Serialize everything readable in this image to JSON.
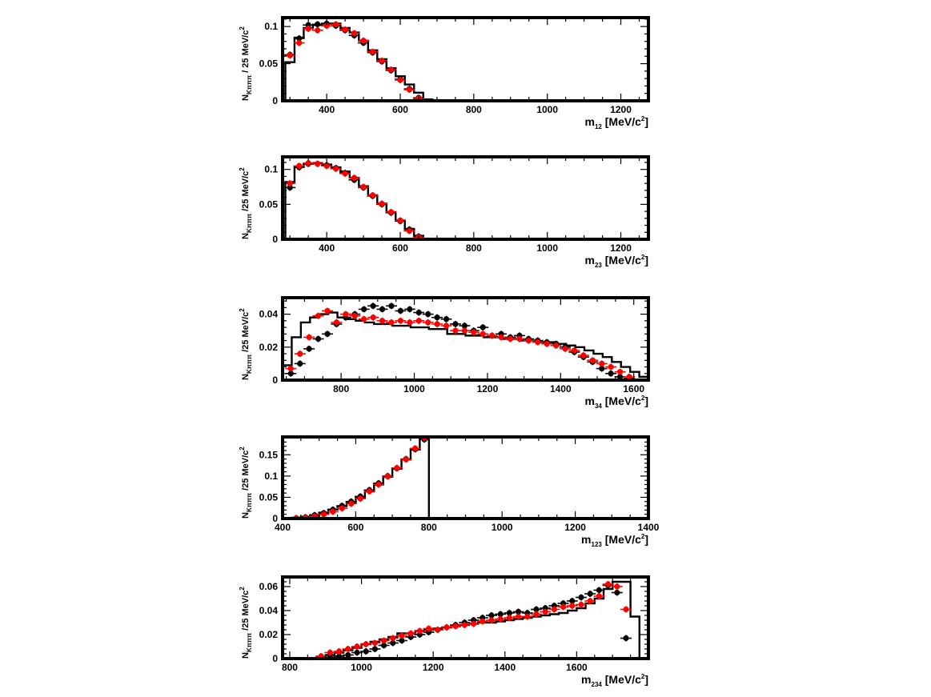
{
  "chart_data": [
    {
      "type": "histogram-with-points",
      "xlabel": "m12 [MeV/c2]",
      "xlabel_main": "m",
      "xlabel_sub": "12",
      "xlabel_unit": "[MeV/c",
      "xlabel_unit_sup": "2",
      "xlabel_unit_close": "]",
      "ylabel": "NKπππ / 25 MeV/c2",
      "ylabel_main": "N",
      "ylabel_sub": "Kπππ",
      "ylabel_rest": "/ 25 MeV/c",
      "ylabel_sup": "2",
      "xlim": [
        280,
        1275
      ],
      "ylim": [
        0,
        0.112
      ],
      "xticks": [
        400,
        600,
        800,
        1000,
        1200
      ],
      "yticks": [
        0,
        0.05,
        0.1
      ],
      "ytick_labels": [
        "0",
        "0.05",
        "0.1"
      ],
      "bin_width": 25,
      "histogram": {
        "x_start": 287.5,
        "values": [
          0.052,
          0.085,
          0.098,
          0.102,
          0.104,
          0.104,
          0.098,
          0.092,
          0.081,
          0.068,
          0.056,
          0.044,
          0.033,
          0.022,
          0.011,
          0.002
        ]
      },
      "series": [
        {
          "color": "#000000",
          "x": [
            300,
            325,
            350,
            375,
            400,
            425,
            450,
            475,
            500,
            525,
            550,
            575,
            600,
            625,
            650
          ],
          "values": [
            0.062,
            0.084,
            0.102,
            0.103,
            0.104,
            0.101,
            0.095,
            0.088,
            0.078,
            0.065,
            0.053,
            0.041,
            0.029,
            0.016,
            0.004
          ]
        },
        {
          "color": "#ff0000",
          "x": [
            300,
            325,
            350,
            375,
            400,
            425,
            450,
            475,
            500,
            525,
            550,
            575,
            600,
            625,
            650
          ],
          "values": [
            0.061,
            0.078,
            0.097,
            0.095,
            0.101,
            0.103,
            0.096,
            0.091,
            0.081,
            0.066,
            0.054,
            0.042,
            0.028,
            0.015,
            0.003
          ]
        }
      ]
    },
    {
      "type": "histogram-with-points",
      "xlabel": "m23 [MeV/c2]",
      "xlabel_main": "m",
      "xlabel_sub": "23",
      "xlabel_unit": "[MeV/c",
      "xlabel_unit_sup": "2",
      "xlabel_unit_close": "]",
      "ylabel": "NKπππ /25 MeV/c2",
      "ylabel_main": "N",
      "ylabel_sub": "Kπππ",
      "ylabel_rest": "/25 MeV/c",
      "ylabel_sup": "2",
      "xlim": [
        280,
        1275
      ],
      "ylim": [
        0,
        0.118
      ],
      "xticks": [
        400,
        600,
        800,
        1000,
        1200
      ],
      "yticks": [
        0,
        0.05,
        0.1
      ],
      "ytick_labels": [
        "0",
        "0.05",
        "0.1"
      ],
      "bin_width": 25,
      "histogram": {
        "x_start": 287.5,
        "values": [
          0.082,
          0.104,
          0.108,
          0.109,
          0.107,
          0.103,
          0.097,
          0.088,
          0.076,
          0.063,
          0.051,
          0.039,
          0.027,
          0.015,
          0.005
        ]
      },
      "series": [
        {
          "color": "#000000",
          "x": [
            300,
            325,
            350,
            375,
            400,
            425,
            450,
            475,
            500,
            525,
            550,
            575,
            600,
            625,
            650
          ],
          "values": [
            0.074,
            0.103,
            0.108,
            0.108,
            0.106,
            0.102,
            0.095,
            0.085,
            0.074,
            0.062,
            0.05,
            0.038,
            0.026,
            0.014,
            0.004
          ]
        },
        {
          "color": "#ff0000",
          "x": [
            300,
            325,
            350,
            375,
            400,
            425,
            450,
            475,
            500,
            525,
            550,
            575,
            600,
            625,
            650
          ],
          "values": [
            0.08,
            0.105,
            0.109,
            0.108,
            0.105,
            0.101,
            0.094,
            0.088,
            0.075,
            0.063,
            0.051,
            0.039,
            0.027,
            0.012,
            0.003
          ]
        }
      ]
    },
    {
      "type": "histogram-with-points",
      "xlabel": "m34 [MeV/c2]",
      "xlabel_main": "m",
      "xlabel_sub": "34",
      "xlabel_unit": "[MeV/c",
      "xlabel_unit_sup": "2",
      "xlabel_unit_close": "]",
      "ylabel": "NKπππ /25 MeV/c2",
      "ylabel_main": "N",
      "ylabel_sub": "Kπππ",
      "ylabel_rest": "/25 MeV/c",
      "ylabel_sup": "2",
      "xlim": [
        640,
        1640
      ],
      "ylim": [
        0,
        0.05
      ],
      "xticks": [
        800,
        1000,
        1200,
        1400,
        1600
      ],
      "yticks": [
        0,
        0.02,
        0.04
      ],
      "ytick_labels": [
        "0",
        "0.02",
        "0.04"
      ],
      "bin_width": 25,
      "histogram": {
        "x_start": 640,
        "values": [
          0.009,
          0.026,
          0.035,
          0.038,
          0.04,
          0.041,
          0.038,
          0.037,
          0.036,
          0.035,
          0.034,
          0.034,
          0.033,
          0.033,
          0.032,
          0.032,
          0.031,
          0.031,
          0.028,
          0.028,
          0.027,
          0.027,
          0.026,
          0.026,
          0.025,
          0.025,
          0.024,
          0.024,
          0.023,
          0.023,
          0.022,
          0.021,
          0.02,
          0.018,
          0.016,
          0.014,
          0.011,
          0.008,
          0.005,
          0.002
        ]
      },
      "series": [
        {
          "color": "#000000",
          "x": [
            662.5,
            687.5,
            712.5,
            737.5,
            762.5,
            787.5,
            812.5,
            837.5,
            862.5,
            887.5,
            912.5,
            937.5,
            962.5,
            987.5,
            1012.5,
            1037.5,
            1062.5,
            1087.5,
            1112.5,
            1137.5,
            1162.5,
            1187.5,
            1212.5,
            1237.5,
            1262.5,
            1287.5,
            1312.5,
            1337.5,
            1362.5,
            1387.5,
            1412.5,
            1437.5,
            1462.5,
            1487.5,
            1512.5,
            1537.5,
            1562.5,
            1587.5
          ],
          "values": [
            0.004,
            0.01,
            0.019,
            0.025,
            0.028,
            0.034,
            0.038,
            0.04,
            0.043,
            0.045,
            0.043,
            0.045,
            0.042,
            0.043,
            0.041,
            0.04,
            0.038,
            0.037,
            0.034,
            0.033,
            0.03,
            0.032,
            0.027,
            0.028,
            0.026,
            0.027,
            0.025,
            0.024,
            0.023,
            0.022,
            0.02,
            0.017,
            0.014,
            0.011,
            0.007,
            0.004,
            0.002,
            0.001
          ]
        },
        {
          "color": "#ff0000",
          "x": [
            662.5,
            687.5,
            712.5,
            737.5,
            762.5,
            787.5,
            812.5,
            837.5,
            862.5,
            887.5,
            912.5,
            937.5,
            962.5,
            987.5,
            1012.5,
            1037.5,
            1062.5,
            1087.5,
            1112.5,
            1137.5,
            1162.5,
            1187.5,
            1212.5,
            1237.5,
            1262.5,
            1287.5,
            1312.5,
            1337.5,
            1362.5,
            1387.5,
            1412.5,
            1437.5,
            1462.5,
            1487.5,
            1512.5,
            1537.5,
            1562.5,
            1587.5
          ],
          "values": [
            0.007,
            0.016,
            0.026,
            0.039,
            0.042,
            0.035,
            0.04,
            0.039,
            0.037,
            0.038,
            0.036,
            0.035,
            0.036,
            0.035,
            0.036,
            0.035,
            0.034,
            0.033,
            0.03,
            0.03,
            0.029,
            0.028,
            0.027,
            0.026,
            0.025,
            0.025,
            0.024,
            0.023,
            0.022,
            0.021,
            0.019,
            0.018,
            0.015,
            0.012,
            0.01,
            0.008,
            0.005,
            0.002
          ]
        }
      ]
    },
    {
      "type": "histogram-with-points",
      "xlabel": "m123 [MeV/c2]",
      "xlabel_main": "m",
      "xlabel_sub": "123",
      "xlabel_unit": "[MeV/c",
      "xlabel_unit_sup": "2",
      "xlabel_unit_close": "]",
      "ylabel": "NKπππ /25 MeV/c2",
      "ylabel_main": "N",
      "ylabel_sub": "Kπππ",
      "ylabel_rest": "/25 MeV/c",
      "ylabel_sup": "2",
      "xlim": [
        400,
        1400
      ],
      "ylim": [
        0,
        0.192
      ],
      "xticks": [
        400,
        600,
        800,
        1000,
        1200,
        1400
      ],
      "yticks": [
        0,
        0.05,
        0.1,
        0.15
      ],
      "ytick_labels": [
        "0",
        "0.05",
        "0.1",
        "0.15"
      ],
      "bin_width": 25,
      "histogram": {
        "x_start": 425,
        "values": [
          0.002,
          0.004,
          0.008,
          0.014,
          0.021,
          0.029,
          0.038,
          0.05,
          0.064,
          0.08,
          0.098,
          0.117,
          0.139,
          0.162,
          0.188
        ]
      },
      "histogram_drop_x": 800,
      "series": [
        {
          "color": "#000000",
          "x": [
            437.5,
            462.5,
            487.5,
            512.5,
            537.5,
            562.5,
            587.5,
            612.5,
            637.5,
            662.5,
            687.5,
            712.5,
            737.5,
            762.5,
            787.5
          ],
          "values": [
            0.001,
            0.003,
            0.008,
            0.013,
            0.021,
            0.03,
            0.04,
            0.052,
            0.067,
            0.083,
            0.1,
            0.118,
            0.14,
            0.163,
            0.186
          ]
        },
        {
          "color": "#ff0000",
          "x": [
            437.5,
            462.5,
            487.5,
            512.5,
            537.5,
            562.5,
            587.5,
            612.5,
            637.5,
            662.5,
            687.5,
            712.5,
            737.5,
            762.5,
            787.5
          ],
          "values": [
            0.001,
            0.002,
            0.005,
            0.01,
            0.016,
            0.024,
            0.035,
            0.047,
            0.064,
            0.08,
            0.099,
            0.119,
            0.139,
            0.165,
            0.19
          ]
        }
      ]
    },
    {
      "type": "histogram-with-points",
      "xlabel": "m234 [MeV/c2]",
      "xlabel_main": "m",
      "xlabel_sub": "234",
      "xlabel_unit": "[MeV/c",
      "xlabel_unit_sup": "2",
      "xlabel_unit_close": "]",
      "ylabel": "NKπππ /25 MeV/c2",
      "ylabel_main": "N",
      "ylabel_sub": "Kπππ",
      "ylabel_rest": "/25 MeV/c",
      "ylabel_sup": "2",
      "xlim": [
        780,
        1800
      ],
      "ylim": [
        0,
        0.068
      ],
      "xticks": [
        800,
        1000,
        1200,
        1400,
        1600
      ],
      "yticks": [
        0,
        0.02,
        0.04,
        0.06
      ],
      "ytick_labels": [
        "0",
        "0.02",
        "0.04",
        "0.06"
      ],
      "bin_width": 25,
      "histogram": {
        "x_start": 875,
        "values": [
          0.001,
          0.003,
          0.005,
          0.007,
          0.009,
          0.012,
          0.014,
          0.016,
          0.018,
          0.021,
          0.021,
          0.023,
          0.024,
          0.025,
          0.026,
          0.027,
          0.028,
          0.029,
          0.03,
          0.03,
          0.031,
          0.032,
          0.033,
          0.034,
          0.035,
          0.036,
          0.037,
          0.038,
          0.04,
          0.042,
          0.046,
          0.05,
          0.058,
          0.064,
          0.064,
          0.035
        ]
      },
      "histogram_drop_x": 1775,
      "series": [
        {
          "color": "#000000",
          "x": [
            887.5,
            912.5,
            937.5,
            962.5,
            987.5,
            1012.5,
            1037.5,
            1062.5,
            1087.5,
            1112.5,
            1137.5,
            1162.5,
            1187.5,
            1212.5,
            1237.5,
            1262.5,
            1287.5,
            1312.5,
            1337.5,
            1362.5,
            1387.5,
            1412.5,
            1437.5,
            1462.5,
            1487.5,
            1512.5,
            1537.5,
            1562.5,
            1587.5,
            1612.5,
            1637.5,
            1662.5,
            1687.5,
            1712.5,
            1737.5
          ],
          "values": [
            0.0,
            0.001,
            0.002,
            0.003,
            0.005,
            0.006,
            0.008,
            0.011,
            0.013,
            0.015,
            0.018,
            0.02,
            0.022,
            0.024,
            0.026,
            0.028,
            0.03,
            0.032,
            0.034,
            0.036,
            0.037,
            0.038,
            0.039,
            0.038,
            0.041,
            0.042,
            0.044,
            0.046,
            0.048,
            0.051,
            0.054,
            0.057,
            0.061,
            0.055,
            0.017
          ]
        },
        {
          "color": "#ff0000",
          "x": [
            887.5,
            912.5,
            937.5,
            962.5,
            987.5,
            1012.5,
            1037.5,
            1062.5,
            1087.5,
            1112.5,
            1137.5,
            1162.5,
            1187.5,
            1212.5,
            1237.5,
            1262.5,
            1287.5,
            1312.5,
            1337.5,
            1362.5,
            1387.5,
            1412.5,
            1437.5,
            1462.5,
            1487.5,
            1512.5,
            1537.5,
            1562.5,
            1587.5,
            1612.5,
            1637.5,
            1662.5,
            1687.5,
            1712.5,
            1737.5
          ],
          "values": [
            0.002,
            0.005,
            0.006,
            0.008,
            0.01,
            0.012,
            0.013,
            0.015,
            0.017,
            0.019,
            0.021,
            0.023,
            0.025,
            0.024,
            0.026,
            0.027,
            0.028,
            0.029,
            0.031,
            0.032,
            0.033,
            0.034,
            0.035,
            0.035,
            0.037,
            0.039,
            0.041,
            0.043,
            0.044,
            0.045,
            0.048,
            0.052,
            0.062,
            0.06,
            0.041
          ]
        }
      ]
    }
  ]
}
